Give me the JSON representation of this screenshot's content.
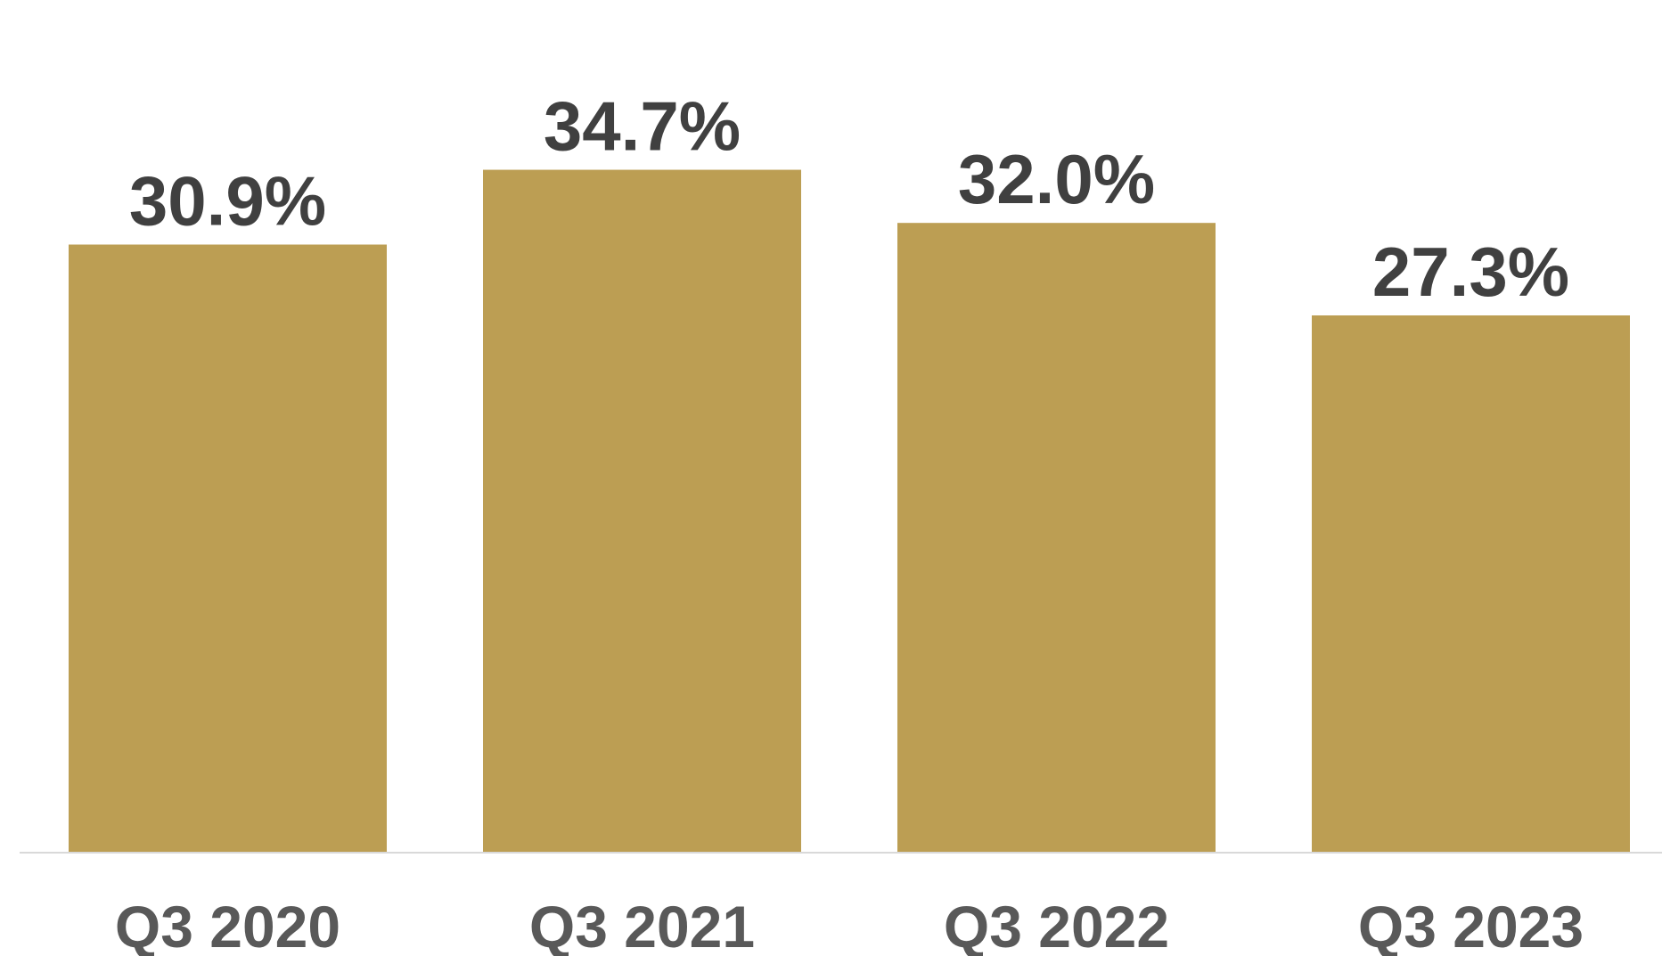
{
  "chart_data": {
    "type": "bar",
    "title": "",
    "xlabel": "",
    "ylabel": "",
    "categories": [
      "Q3 2020",
      "Q3 2021",
      "Q3 2022",
      "Q3 2023"
    ],
    "values": [
      30.9,
      34.7,
      32.0,
      27.3
    ],
    "value_labels": [
      "30.9%",
      "34.7%",
      "32.0%",
      "27.3%"
    ],
    "ylim": [
      0,
      38.8
    ],
    "grid": false,
    "legend": "none",
    "colors": {
      "bar": "#BC9E53",
      "value_label": "#404040",
      "category_label": "#595959",
      "baseline": "#D9D9D9"
    }
  }
}
